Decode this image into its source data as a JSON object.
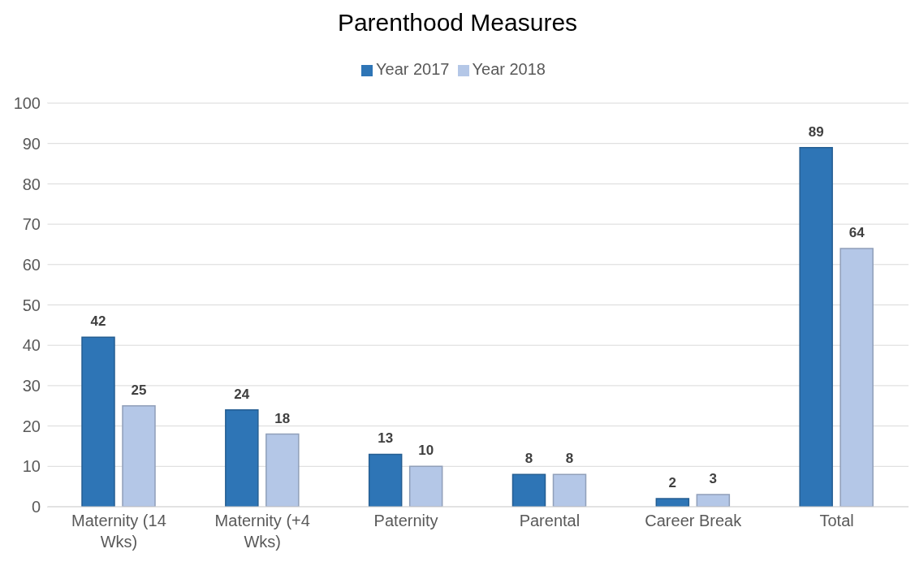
{
  "chart_data": {
    "type": "bar",
    "title": "Parenthood Measures",
    "categories": [
      "Maternity (14 Wks)",
      "Maternity (+4 Wks)",
      "Paternity",
      "Parental",
      "Career Break",
      "Total"
    ],
    "series": [
      {
        "name": "Year 2017",
        "color": "#2e75b6",
        "values": [
          42,
          24,
          13,
          8,
          2,
          89
        ]
      },
      {
        "name": "Year 2018",
        "color": "#b4c7e7",
        "values": [
          25,
          18,
          10,
          8,
          3,
          64
        ]
      }
    ],
    "ylim": [
      0,
      100
    ],
    "yticks": [
      0,
      10,
      20,
      30,
      40,
      50,
      60,
      70,
      80,
      90,
      100
    ],
    "grid": "y",
    "legend": "top",
    "data_labels": true
  }
}
